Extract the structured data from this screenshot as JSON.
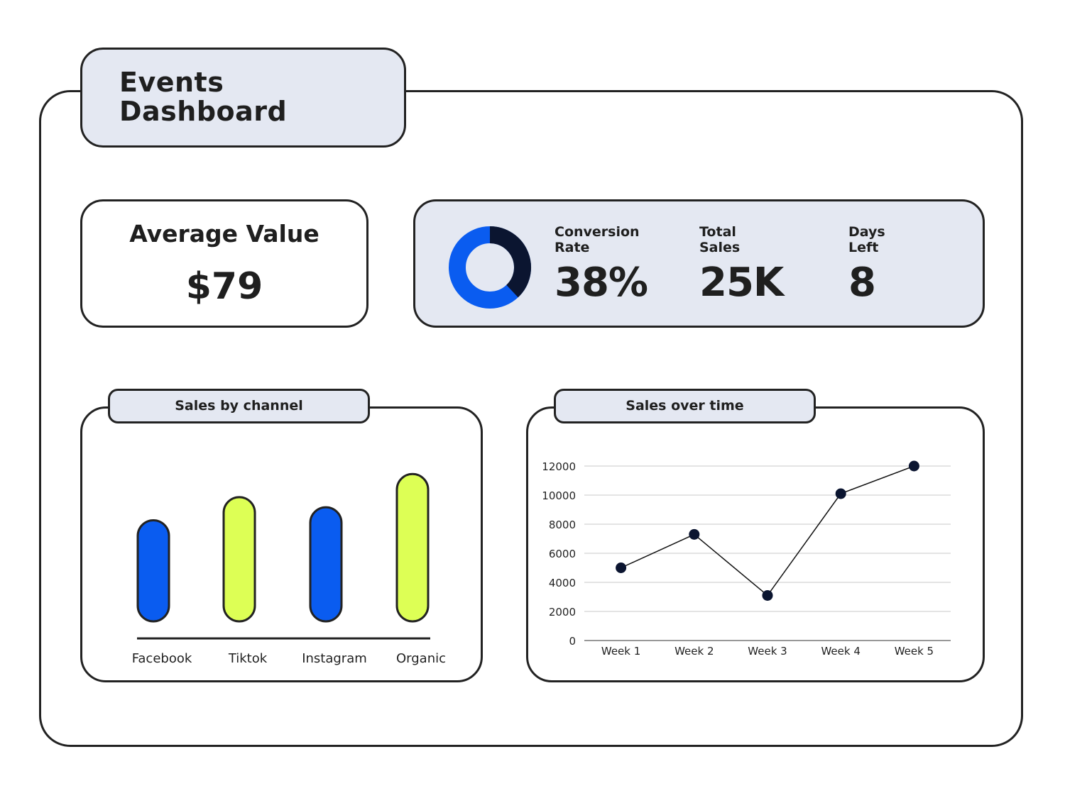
{
  "header": {
    "title": "Events Dashboard"
  },
  "average": {
    "label": "Average Value",
    "value": "$79"
  },
  "stats": {
    "conversion": {
      "label": "Conversion Rate",
      "value": "38%",
      "fraction": 0.38
    },
    "total_sales": {
      "label": "Total Sales",
      "value": "25K"
    },
    "days_left": {
      "label": "Days Left",
      "value": "8"
    }
  },
  "colors": {
    "blue": "#0a5cf0",
    "lime": "#ddff55",
    "navy": "#0b1530",
    "panel": "#e4e8f2"
  },
  "chart_data": [
    {
      "type": "bar",
      "title": "Sales by channel",
      "categories": [
        "Facebook",
        "Tiktok",
        "Instagram",
        "Organic"
      ],
      "values": [
        70,
        86,
        79,
        102
      ],
      "colors": [
        "#0a5cf0",
        "#ddff55",
        "#0a5cf0",
        "#ddff55"
      ],
      "ylim": [
        0,
        110
      ],
      "grid": false
    },
    {
      "type": "line",
      "title": "Sales over time",
      "categories": [
        "Week 1",
        "Week 2",
        "Week 3",
        "Week 4",
        "Week 5"
      ],
      "values": [
        5000,
        7300,
        3100,
        10100,
        12000
      ],
      "yticks": [
        "0",
        "2000",
        "4000",
        "6000",
        "8000",
        "10000",
        "12000"
      ],
      "ylim": [
        0,
        12000
      ],
      "grid": true
    }
  ]
}
